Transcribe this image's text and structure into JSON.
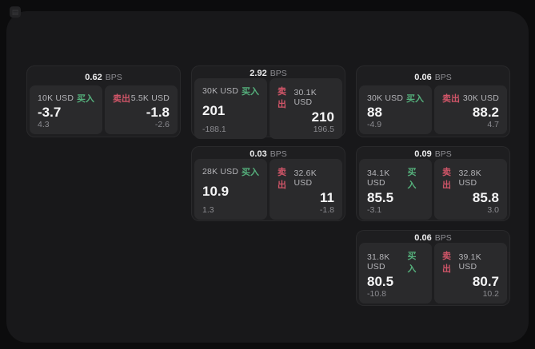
{
  "app": {
    "icon": "app-icon",
    "icon_glyph": "▤",
    "bps_unit_label": "BPS",
    "buy_label": "买入",
    "sell_label": "卖出",
    "colors": {
      "background": "#0c0c0d",
      "surface": "#18181a",
      "card": "#1e1e20",
      "panel": "#2a2a2c",
      "buy": "#55b07c",
      "sell": "#d05568"
    }
  },
  "cards": [
    {
      "col": 1,
      "row": 1,
      "bps": "0.62",
      "buy": {
        "size": "10K USD",
        "price": "-3.7",
        "delta": "4.3"
      },
      "sell": {
        "size": "5.5K USD",
        "price": "-1.8",
        "delta": "-2.6"
      }
    },
    {
      "col": 2,
      "row": 1,
      "bps": "2.92",
      "buy": {
        "size": "30K USD",
        "price": "201",
        "delta": "-188.1"
      },
      "sell": {
        "size": "30.1K USD",
        "price": "210",
        "delta": "196.5"
      }
    },
    {
      "col": 3,
      "row": 1,
      "bps": "0.06",
      "buy": {
        "size": "30K USD",
        "price": "88",
        "delta": "-4.9"
      },
      "sell": {
        "size": "30K USD",
        "price": "88.2",
        "delta": "4.7"
      }
    },
    {
      "col": 2,
      "row": 2,
      "bps": "0.03",
      "buy": {
        "size": "28K USD",
        "price": "10.9",
        "delta": "1.3"
      },
      "sell": {
        "size": "32.6K USD",
        "price": "11",
        "delta": "-1.8"
      }
    },
    {
      "col": 3,
      "row": 2,
      "bps": "0.09",
      "buy": {
        "size": "34.1K USD",
        "price": "85.5",
        "delta": "-3.1"
      },
      "sell": {
        "size": "32.8K USD",
        "price": "85.8",
        "delta": "3.0"
      }
    },
    {
      "col": 3,
      "row": 3,
      "bps": "0.06",
      "buy": {
        "size": "31.8K USD",
        "price": "80.5",
        "delta": "-10.8"
      },
      "sell": {
        "size": "39.1K USD",
        "price": "80.7",
        "delta": "10.2"
      }
    }
  ]
}
